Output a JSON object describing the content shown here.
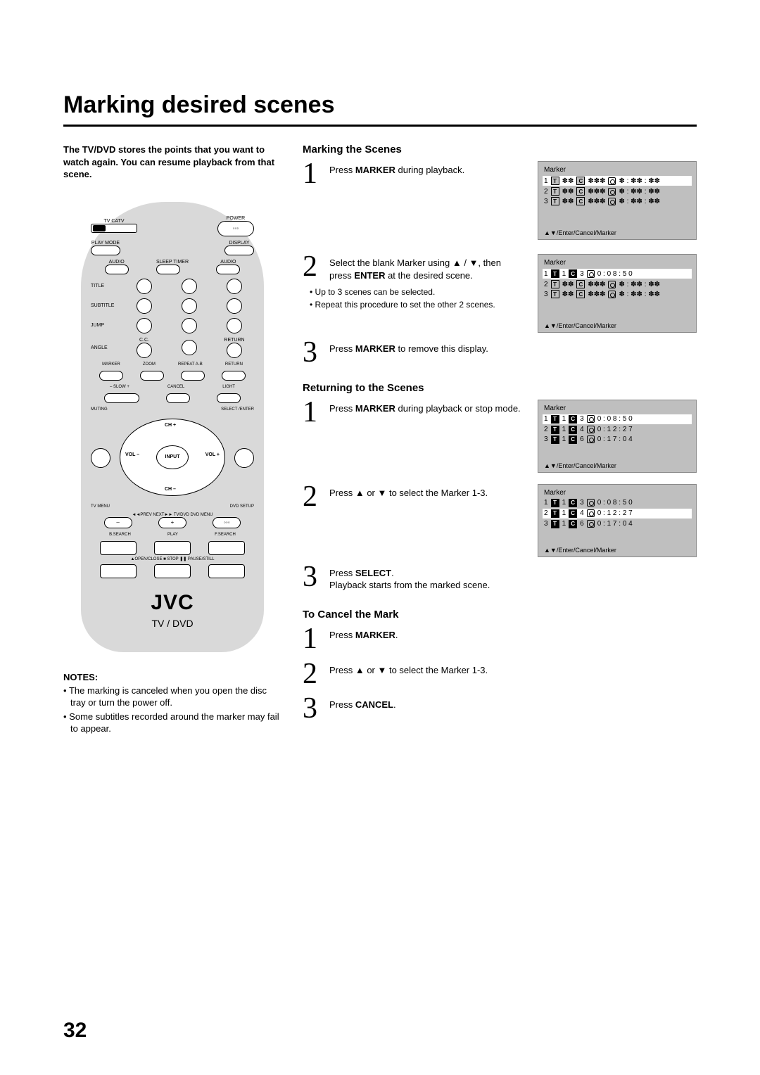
{
  "title": "Marking desired scenes",
  "intro": "The TV/DVD stores the points that you want to watch again. You can resume playback from that scene.",
  "remote": {
    "topLeft": "TV  CATV",
    "topRight": "POWER",
    "row2Left": "PLAY MODE",
    "row2Right": "DISPLAY",
    "row3a": "AUDIO",
    "row3b": "SLEEP TIMER",
    "row3c": "AUDIO",
    "sideLabels": [
      "TITLE",
      "SUBTITLE",
      "JUMP",
      "ANGLE"
    ],
    "ccLabel": "C.C.",
    "returnLabel": "RETURN",
    "rowLabels": [
      "MARKER",
      "ZOOM",
      "REPEAT A-B",
      "RETURN"
    ],
    "rowLabels2a": "– SLOW +",
    "rowLabels2b": "CANCEL",
    "rowLabels2c": "LIGHT",
    "muting": "MUTING",
    "select": "SELECT /ENTER",
    "chUp": "CH +",
    "chDn": "CH –",
    "volDn": "VOL –",
    "volUp": "VOL +",
    "input": "INPUT",
    "tvmenu": "TV MENU",
    "dvdsetup": "DVD SETUP",
    "prevnext": "◄◄PREV  NEXT►►  TV/DVD  DVD MENU",
    "transLabels": [
      "B.SEARCH",
      "PLAY",
      "F.SEARCH"
    ],
    "bottomLabels": "▲OPEN/CLOSE  ■ STOP   ❚❚ PAUSE/STILL",
    "brand": "JVC",
    "model": "TV / DVD"
  },
  "notesHeading": "NOTES:",
  "notes": [
    "The marking is canceled when you open the disc tray or turn the power off.",
    "Some subtitles recorded around the marker may fail to appear."
  ],
  "secMarking": {
    "heading": "Marking the Scenes",
    "s1a": "Press ",
    "s1b": "MARKER",
    "s1c": " during playback.",
    "s2a": "Select the blank Marker using ▲ / ▼, then press ",
    "s2b": "ENTER",
    "s2c": " at the desired scene.",
    "s2sub": [
      "Up to 3 scenes can be selected.",
      "Repeat this procedure to set the other 2 scenes."
    ],
    "s3a": "Press ",
    "s3b": "MARKER",
    "s3c": " to remove this display."
  },
  "secReturn": {
    "heading": "Returning to the Scenes",
    "s1a": "Press ",
    "s1b": "MARKER",
    "s1c": " during playback or stop mode.",
    "s2": "Press ▲ or ▼ to select the Marker 1-3.",
    "s3a": "Press ",
    "s3b": "SELECT",
    "s3c": ".",
    "s3d": "Playback starts from the marked scene."
  },
  "secCancel": {
    "heading": "To Cancel the Mark",
    "s1a": "Press ",
    "s1b": "MARKER",
    "s1c": ".",
    "s2": "Press ▲ or ▼ to select the Marker 1-3.",
    "s3a": "Press ",
    "s3b": "CANCEL",
    "s3c": "."
  },
  "osd": {
    "title": "Marker",
    "footer": "▲▼/Enter/Cancel/Marker",
    "blank": {
      "rows": [
        {
          "n": "1",
          "t": "✽✽",
          "c": "✽✽✽",
          "time": "✽ : ✽✽ : ✽✽",
          "hl": true
        },
        {
          "n": "2",
          "t": "✽✽",
          "c": "✽✽✽",
          "time": "✽ : ✽✽ : ✽✽"
        },
        {
          "n": "3",
          "t": "✽✽",
          "c": "✽✽✽",
          "time": "✽ : ✽✽ : ✽✽"
        }
      ]
    },
    "one": {
      "rows": [
        {
          "n": "1",
          "t": "1",
          "c": "3",
          "time": "0 : 0 8 : 5 0",
          "hl": true,
          "inv": true
        },
        {
          "n": "2",
          "t": "✽✽",
          "c": "✽✽✽",
          "time": "✽ : ✽✽ : ✽✽"
        },
        {
          "n": "3",
          "t": "✽✽",
          "c": "✽✽✽",
          "time": "✽ : ✽✽ : ✽✽"
        }
      ]
    },
    "three": {
      "rows": [
        {
          "n": "1",
          "t": "1",
          "c": "3",
          "time": "0 : 0 8 : 5 0",
          "hl": true,
          "inv": true
        },
        {
          "n": "2",
          "t": "1",
          "c": "4",
          "time": "0 : 1 2 : 2 7",
          "inv": true
        },
        {
          "n": "3",
          "t": "1",
          "c": "6",
          "time": "0 : 1 7 : 0 4",
          "inv": true
        }
      ]
    },
    "sel2": {
      "rows": [
        {
          "n": "1",
          "t": "1",
          "c": "3",
          "time": "0 : 0 8 : 5 0",
          "inv": true
        },
        {
          "n": "2",
          "t": "1",
          "c": "4",
          "time": "0 : 1 2 : 2 7",
          "hl": true,
          "inv": true
        },
        {
          "n": "3",
          "t": "1",
          "c": "6",
          "time": "0 : 1 7 : 0 4",
          "inv": true
        }
      ]
    }
  },
  "pageNumber": "32"
}
